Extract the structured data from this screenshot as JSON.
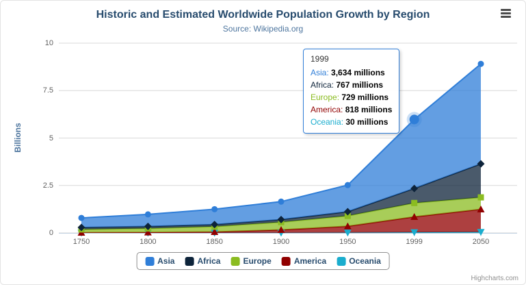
{
  "credits": "Highcharts.com",
  "icons": {
    "export_menu": "hamburger-menu"
  },
  "theme": {
    "title_color": "#274b6d",
    "subtitle_color": "#4d759e",
    "axis_title_color": "#4d759e",
    "axis_label_color": "#606060",
    "legend_text_color": "#274b6d",
    "legend_border_color": "#909090",
    "grid_color": "#d8d8d8",
    "axis_line_color": "#c0d0e0",
    "credits_color": "#909090",
    "background_color": "#ffffff"
  },
  "chart_data": {
    "type": "area",
    "stacking": "normal",
    "title": "Historic and Estimated Worldwide Population Growth by Region",
    "subtitle": "Source: Wikipedia.org",
    "categories": [
      "1750",
      "1800",
      "1850",
      "1900",
      "1950",
      "1999",
      "2050"
    ],
    "series": [
      {
        "name": "Asia",
        "color": "#2f7ed8",
        "marker": "circle",
        "values": [
          502,
          635,
          809,
          947,
          1402,
          3634,
          5268
        ]
      },
      {
        "name": "Africa",
        "color": "#0d233a",
        "marker": "diamond",
        "values": [
          106,
          107,
          111,
          133,
          221,
          767,
          1766
        ]
      },
      {
        "name": "Europe",
        "color": "#8bbc21",
        "marker": "square",
        "values": [
          163,
          203,
          276,
          408,
          547,
          729,
          628
        ]
      },
      {
        "name": "America",
        "color": "#910000",
        "marker": "triangle",
        "values": [
          18,
          31,
          54,
          156,
          339,
          818,
          1201
        ]
      },
      {
        "name": "Oceania",
        "color": "#1aadce",
        "marker": "triangle-down",
        "values": [
          2,
          2,
          2,
          6,
          13,
          30,
          46
        ]
      }
    ],
    "unit": "millions",
    "xlabel": "",
    "ylabel": "Billions",
    "ylim": [
      0,
      10
    ],
    "yticks": [
      0,
      2.5,
      5,
      7.5,
      10
    ],
    "grid": true,
    "legend_position": "bottom",
    "hover_index": 5
  },
  "tooltip": {
    "header": "1999",
    "unit": "millions",
    "rows": [
      {
        "series": "Asia",
        "value": "3,634"
      },
      {
        "series": "Africa",
        "value": "767"
      },
      {
        "series": "Europe",
        "value": "729"
      },
      {
        "series": "America",
        "value": "818"
      },
      {
        "series": "Oceania",
        "value": "30"
      }
    ]
  }
}
